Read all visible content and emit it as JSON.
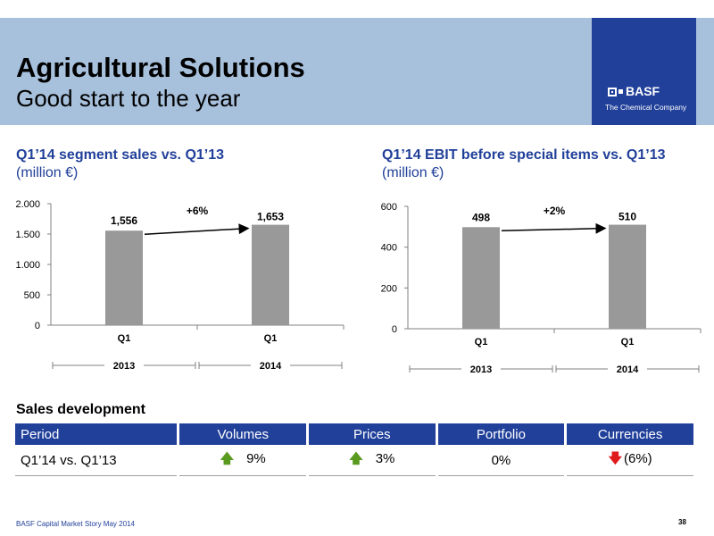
{
  "header": {
    "title": "Agricultural Solutions",
    "subtitle": "Good start to the year",
    "logo_text": "BASF",
    "logo_tagline": "The Chemical Company",
    "colors": {
      "band": "#a7c0dc",
      "brand": "#21409a"
    }
  },
  "left_panel": {
    "title": "Q1’14 segment sales vs. Q1’13",
    "unit": "(million €)"
  },
  "right_panel": {
    "title": "Q1’14 EBIT before special items vs. Q1’13",
    "unit": "(million €)"
  },
  "chart_data": [
    {
      "type": "bar",
      "categories": [
        "Q1",
        "Q1"
      ],
      "groups": [
        "2013",
        "2014"
      ],
      "values": [
        1556,
        1653
      ],
      "data_labels": [
        "1,556",
        "1,653"
      ],
      "ylim": [
        0,
        2000
      ],
      "yticks": [
        0,
        500,
        1000,
        1500,
        2000
      ],
      "ytick_labels": [
        "0",
        "500",
        "1.000",
        "1.500",
        "2.000"
      ],
      "annotation": "+6%",
      "bar_color": "#999999"
    },
    {
      "type": "bar",
      "categories": [
        "Q1",
        "Q1"
      ],
      "groups": [
        "2013",
        "2014"
      ],
      "values": [
        498,
        510
      ],
      "data_labels": [
        "498",
        "510"
      ],
      "ylim": [
        0,
        600
      ],
      "yticks": [
        0,
        200,
        400,
        600
      ],
      "ytick_labels": [
        "0",
        "200",
        "400",
        "600"
      ],
      "annotation": "+2%",
      "bar_color": "#999999"
    }
  ],
  "sales": {
    "title": "Sales development",
    "headers": [
      "Period",
      "Volumes",
      "Prices",
      "Portfolio",
      "Currencies"
    ],
    "row": {
      "period": "Q1’14 vs. Q1’13",
      "volumes": "9%",
      "prices": "3%",
      "portfolio": "0%",
      "currencies": "(6%)"
    },
    "arrow_colors": {
      "up": "#5a9a1e",
      "down": "#e01b1b"
    }
  },
  "footer": {
    "text": "BASF Capital Market Story May 2014",
    "page": "38"
  }
}
